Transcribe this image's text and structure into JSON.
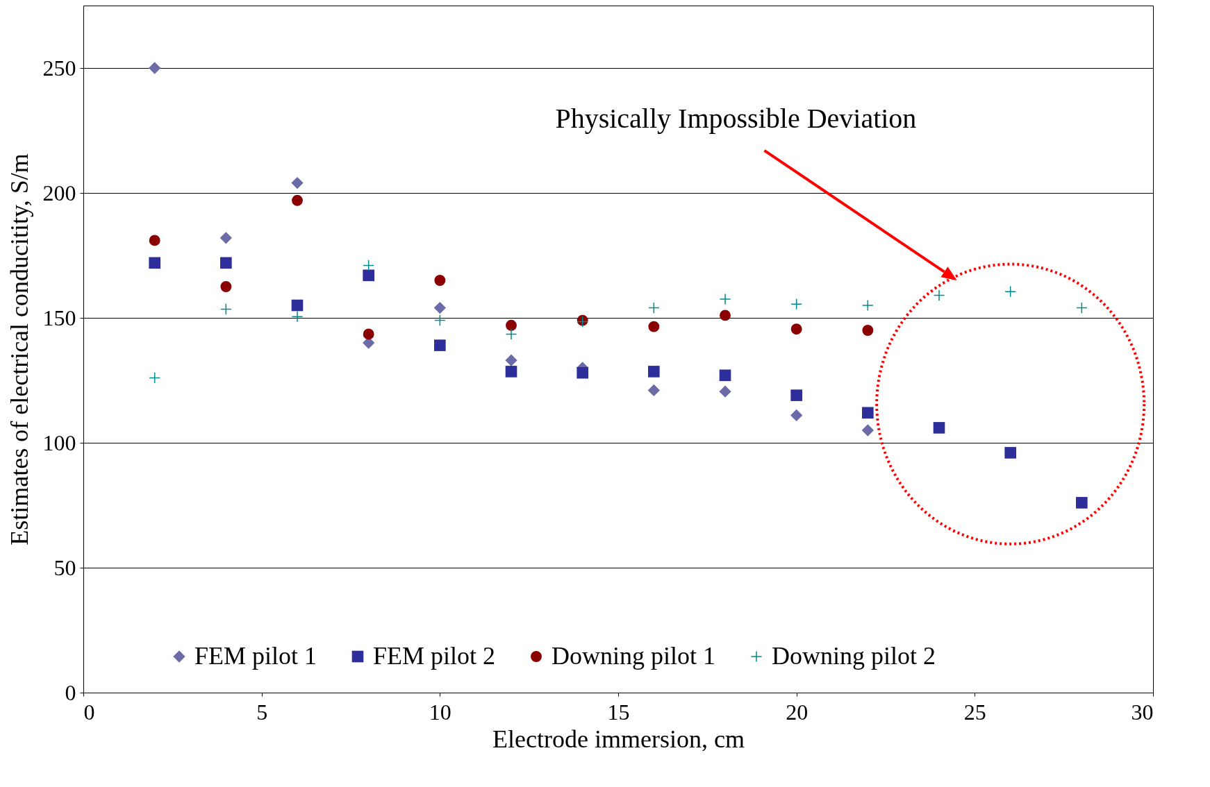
{
  "chart_data": {
    "type": "scatter",
    "xlabel": "Electrode immersion, cm",
    "ylabel": "Estimates of electrical conducitity, S/m",
    "x": [
      2,
      4,
      6,
      8,
      10,
      12,
      14,
      16,
      18,
      20,
      22,
      24,
      26,
      28
    ],
    "xlim": [
      0,
      30
    ],
    "xticks": [
      0,
      5,
      10,
      15,
      20,
      25,
      30
    ],
    "ylim": [
      0,
      275
    ],
    "yticks": [
      0,
      50,
      100,
      150,
      200,
      250
    ],
    "grid": "y",
    "legend": "bottom",
    "annotations": [
      "Physically Impossible Deviation"
    ],
    "series": [
      {
        "name": "FEM pilot 1",
        "color": "#6b6ba8",
        "marker": "diamond",
        "values": [
          250,
          182,
          204,
          140,
          154,
          133,
          130,
          121,
          120.5,
          111,
          105,
          null,
          null,
          null
        ]
      },
      {
        "name": "FEM pilot 2",
        "color": "#2e2e9a",
        "marker": "square",
        "values": [
          172,
          172,
          155,
          167,
          139,
          128.5,
          128,
          128.5,
          127,
          119,
          112,
          106,
          96,
          76
        ]
      },
      {
        "name": "Downing pilot 1",
        "color": "#8b0000",
        "marker": "circle",
        "values": [
          181,
          162.5,
          197,
          143.5,
          165,
          147,
          149,
          146.5,
          151,
          145.5,
          145,
          null,
          null,
          null
        ]
      },
      {
        "name": "Downing pilot 2",
        "color": "#008b8b",
        "marker": "cross",
        "values": [
          126,
          153.5,
          150.5,
          171,
          149,
          143.5,
          148.5,
          154,
          157.5,
          155.5,
          155,
          159,
          160.5,
          154
        ]
      }
    ]
  }
}
